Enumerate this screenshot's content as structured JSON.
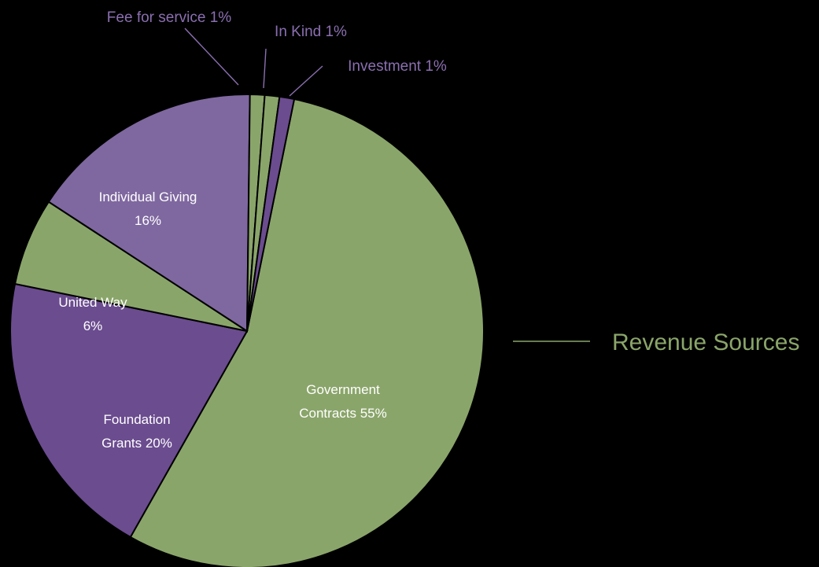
{
  "chart_data": {
    "type": "pie",
    "title": "",
    "slices": [
      {
        "name": "Government Contracts",
        "value": 55,
        "label": "Government Contracts 55%",
        "color": "#8aa56a"
      },
      {
        "name": "Foundation Grants",
        "value": 20,
        "label": "Foundation Grants 20%",
        "color": "#6b4c8f"
      },
      {
        "name": "United Way",
        "value": 6,
        "label": "United Way 6%",
        "color": "#8aa56a"
      },
      {
        "name": "Individual Giving",
        "value": 16,
        "label": "Individual Giving 16%",
        "color": "#7f68a0"
      },
      {
        "name": "Fee for service",
        "value": 1,
        "label": "Fee for service 1%",
        "color": "#8aa56a"
      },
      {
        "name": "In Kind",
        "value": 1,
        "label": "In Kind 1%",
        "color": "#8aa56a"
      },
      {
        "name": "Investment",
        "value": 1,
        "label": "Investment 1%",
        "color": "#6b4c8f"
      }
    ],
    "legend": {
      "entries": [
        "Revenue Sources"
      ],
      "placement": "right",
      "color": "#8aa56a"
    }
  },
  "colors": {
    "background": "#000000",
    "green": "#8aa56a",
    "purple_dark": "#6b4c8f",
    "purple_light": "#7f68a0",
    "label_purple": "#8a6fb0"
  }
}
